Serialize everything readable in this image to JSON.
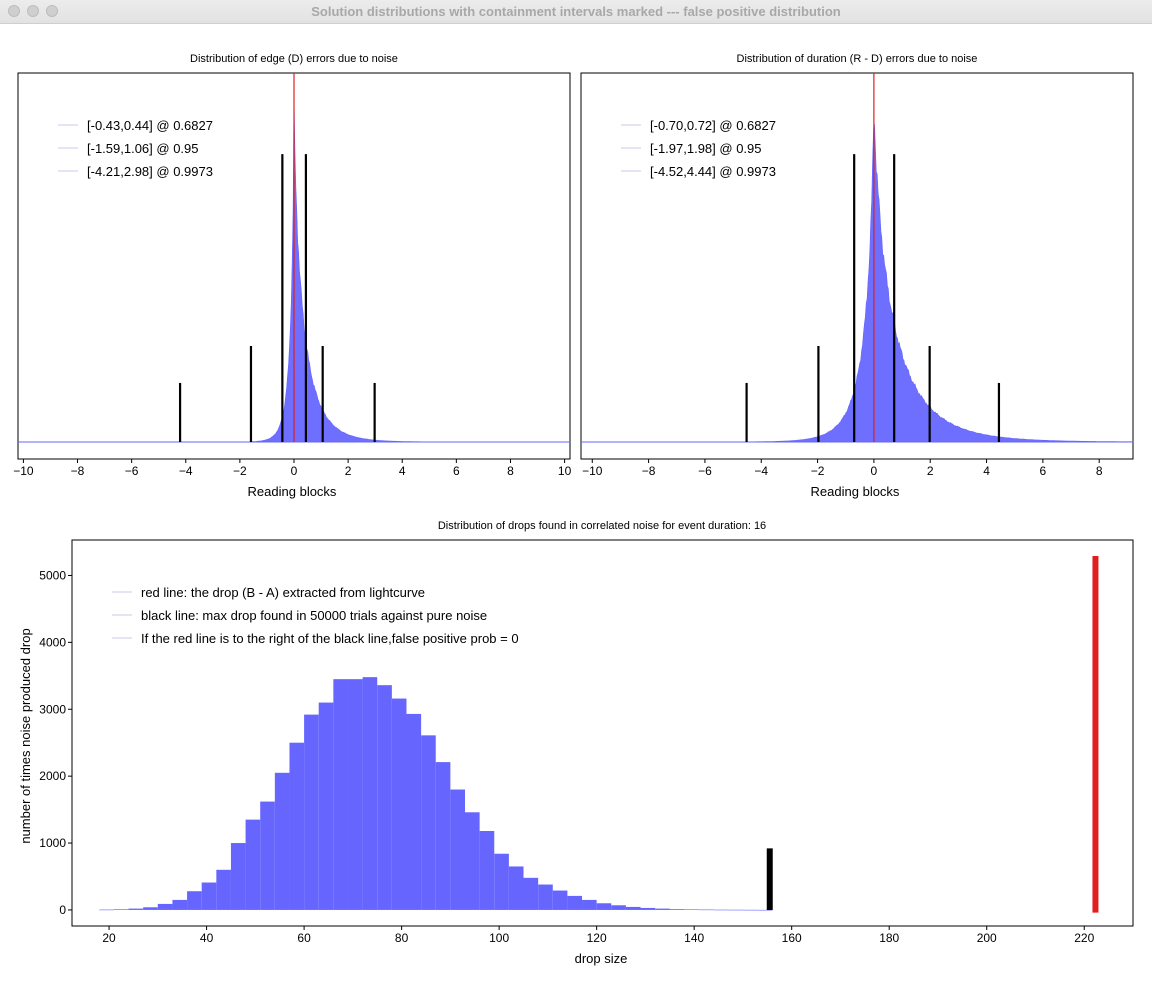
{
  "window": {
    "title": "Solution distributions with containment intervals marked --- false positive distribution"
  },
  "chart_data": [
    {
      "type": "bar",
      "id": "edge",
      "title": "Distribution of edge (D) errors due to noise",
      "xlabel": "Reading blocks",
      "ylabel": "",
      "xlim": [
        -10.2,
        10.2
      ],
      "xticks": [
        -10,
        -8,
        -6,
        -4,
        -2,
        0,
        2,
        4,
        6,
        8,
        10
      ],
      "grid": false,
      "legend_position": "top-left",
      "legend": [
        "[-0.43,0.44] @ 0.6827",
        "[-1.59,1.06] @ 0.95",
        "[-4.21,2.98] @ 0.9973"
      ],
      "intervals": [
        [
          -0.43,
          0.44
        ],
        [
          -1.59,
          1.06
        ],
        [
          -4.21,
          2.98
        ]
      ],
      "interval_heights": [
        0.78,
        0.26,
        0.16
      ],
      "red_line_x": 0,
      "hist_color": "#6666ff",
      "hist_scale": [
        0.1,
        0.28
      ]
    },
    {
      "type": "bar",
      "id": "duration",
      "title": "Distribution of duration (R - D) errors due to noise",
      "xlabel": "Reading blocks",
      "ylabel": "",
      "xlim": [
        -10.4,
        9.2
      ],
      "xticks": [
        -10,
        -8,
        -6,
        -4,
        -2,
        0,
        2,
        4,
        6,
        8
      ],
      "grid": false,
      "legend_position": "top-left",
      "legend": [
        "[-0.70,0.72] @ 0.6827",
        "[-1.97,1.98] @ 0.95",
        "[-4.52,4.44] @ 0.9973"
      ],
      "intervals": [
        [
          -0.7,
          0.72
        ],
        [
          -1.97,
          1.98
        ],
        [
          -4.52,
          4.44
        ]
      ],
      "interval_heights": [
        0.78,
        0.26,
        0.16
      ],
      "red_line_x": 0,
      "hist_color": "#6666ff",
      "hist_scale": [
        0.25,
        0.55
      ]
    },
    {
      "type": "bar",
      "id": "drops",
      "title": "Distribution of drops found in correlated noise for event duration: 16",
      "xlabel": "drop size",
      "ylabel": "number of times noise produced drop",
      "xlim": [
        12.4,
        230
      ],
      "ylim": [
        -240,
        5530
      ],
      "xticks": [
        20,
        40,
        60,
        80,
        100,
        120,
        140,
        160,
        180,
        200,
        220
      ],
      "yticks": [
        0,
        1000,
        2000,
        3000,
        4000,
        5000
      ],
      "grid": false,
      "legend_position": "top-left",
      "legend": [
        "red line: the drop (B - A) extracted from lightcurve",
        "black line: max drop found in 50000 trials against pure noise",
        "If the red line is to the right of the black line,false positive prob = 0"
      ],
      "bin_width": 3,
      "bins_start": [
        18,
        21,
        24,
        27,
        30,
        33,
        36,
        39,
        42,
        45,
        48,
        51,
        54,
        57,
        60,
        63,
        66,
        69,
        72,
        75,
        78,
        81,
        84,
        87,
        90,
        93,
        96,
        99,
        102,
        105,
        108,
        111,
        114,
        117,
        120,
        123,
        126,
        129,
        132,
        135,
        138,
        141,
        144,
        147,
        150,
        153
      ],
      "counts": [
        5,
        10,
        20,
        40,
        90,
        150,
        280,
        410,
        600,
        1000,
        1350,
        1620,
        2050,
        2500,
        2920,
        3100,
        3450,
        3450,
        3480,
        3360,
        3160,
        2930,
        2610,
        2210,
        1800,
        1460,
        1180,
        840,
        650,
        480,
        380,
        290,
        210,
        150,
        100,
        70,
        45,
        30,
        20,
        12,
        8,
        6,
        4,
        3,
        2,
        1
      ],
      "black_line": {
        "x": 155.5,
        "value": 920
      },
      "red_line": {
        "x": 222.3,
        "value": 5290
      },
      "hist_color": "#6666ff"
    }
  ]
}
